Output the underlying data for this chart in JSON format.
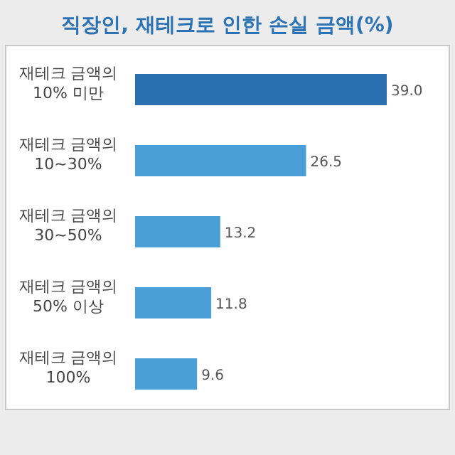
{
  "chart_data": {
    "type": "bar",
    "orientation": "horizontal",
    "title": "직장인, 재테크로 인한 손실 금액(%)",
    "categories": [
      "재테크 금액의\n10% 미만",
      "재테크 금액의\n10~30%",
      "재테크 금액의\n30~50%",
      "재테크 금액의\n50% 이상",
      "재테크 금액의\n100%"
    ],
    "values": [
      39.0,
      26.5,
      13.2,
      11.8,
      9.6
    ],
    "colors": [
      "#2a6fb0",
      "#4a9fd8",
      "#4a9fd8",
      "#4a9fd8",
      "#4a9fd8"
    ],
    "value_labels": [
      "39.0",
      "26.5",
      "13.2",
      "11.8",
      "9.6"
    ]
  }
}
